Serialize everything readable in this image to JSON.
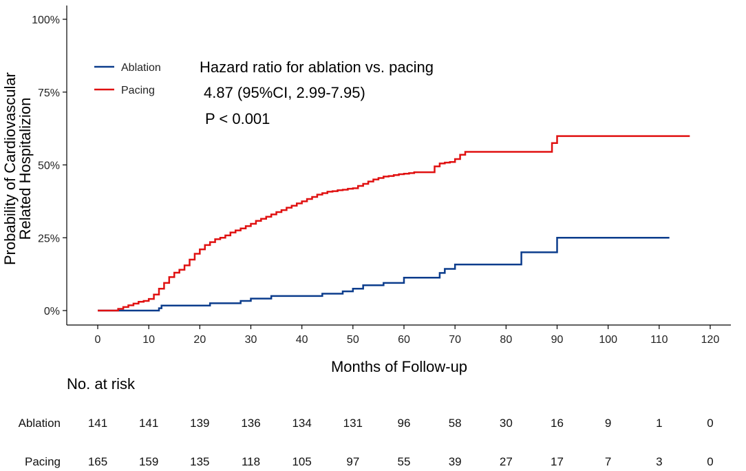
{
  "chart_data": {
    "type": "line",
    "step": true,
    "title": "",
    "xlabel": "Months of Follow-up",
    "ylabel_lines": [
      "Probability of Cardiovascular",
      "Related Hospitalizion"
    ],
    "xlim": [
      0,
      120
    ],
    "ylim": [
      0,
      100
    ],
    "x_ticks": [
      0,
      10,
      20,
      30,
      40,
      50,
      60,
      70,
      80,
      90,
      100,
      110,
      120
    ],
    "y_ticks": [
      0,
      25,
      50,
      75,
      100
    ],
    "y_tick_labels": [
      "0%",
      "25%",
      "50%",
      "75%",
      "100%"
    ],
    "grid": false,
    "legend_position": "top-left",
    "series": [
      {
        "name": "Ablation",
        "color": "#0b3c8c",
        "x": [
          0,
          4,
          10,
          12,
          12.5,
          18,
          22,
          26,
          28,
          30,
          34,
          40,
          44,
          48,
          50,
          52,
          56,
          60,
          66,
          67,
          68,
          70,
          75,
          83,
          89,
          90,
          112
        ],
        "y": [
          0,
          0,
          0,
          0.8,
          1.7,
          1.7,
          2.5,
          2.5,
          3.3,
          4.1,
          5.0,
          5.0,
          5.8,
          6.6,
          7.5,
          8.7,
          9.5,
          11.3,
          11.3,
          12.9,
          14.3,
          15.8,
          15.8,
          20.0,
          20.0,
          25.0,
          25.0
        ]
      },
      {
        "name": "Pacing",
        "color": "#e01010",
        "x": [
          0,
          4,
          5,
          6,
          7,
          8,
          9,
          10,
          11,
          12,
          13,
          14,
          15,
          16,
          17,
          18,
          19,
          20,
          21,
          22,
          23,
          24,
          25,
          26,
          27,
          28,
          29,
          30,
          31,
          32,
          33,
          34,
          35,
          36,
          37,
          38,
          39,
          40,
          41,
          42,
          43,
          44,
          45,
          46,
          47,
          48,
          49,
          50,
          51,
          52,
          53,
          54,
          55,
          56,
          57,
          58,
          59,
          60,
          61,
          62,
          63,
          64,
          65,
          66,
          67,
          68,
          69,
          70,
          71,
          72,
          75,
          80,
          85,
          88,
          89,
          90,
          116
        ],
        "y": [
          0,
          0.6,
          1.2,
          1.8,
          2.4,
          3.0,
          3.3,
          4.0,
          5.5,
          7.5,
          9.5,
          11.5,
          13,
          14,
          15.5,
          17.5,
          19.5,
          21,
          22.5,
          23.5,
          24.5,
          25,
          25.8,
          26.8,
          27.5,
          28.2,
          29,
          29.8,
          30.8,
          31.5,
          32.2,
          33,
          33.8,
          34.5,
          35.3,
          36,
          36.8,
          37.5,
          38.3,
          39,
          39.8,
          40.3,
          40.8,
          41,
          41.3,
          41.5,
          41.8,
          42,
          42.8,
          43.5,
          44.3,
          45,
          45.5,
          46,
          46.2,
          46.5,
          46.8,
          47,
          47.2,
          47.5,
          47.5,
          47.5,
          47.5,
          49.5,
          50.5,
          50.8,
          51,
          52,
          53.5,
          54.5,
          54.5,
          54.5,
          54.5,
          54.5,
          57.5,
          59.9,
          59.9
        ]
      }
    ],
    "annotations": [
      "Hazard ratio for ablation vs. pacing",
      "4.87 (95%CI, 2.99-7.95)",
      "P < 0.001"
    ],
    "risk_table": {
      "title": "No. at risk",
      "times": [
        0,
        10,
        20,
        30,
        40,
        50,
        60,
        70,
        80,
        90,
        100,
        110,
        120
      ],
      "rows": [
        {
          "label": "Ablation",
          "values": [
            "141",
            "141",
            "139",
            "136",
            "134",
            "131",
            "96",
            "58",
            "30",
            "16",
            "9",
            "1",
            "0"
          ]
        },
        {
          "label": "Pacing",
          "values": [
            "165",
            "159",
            "135",
            "118",
            "105",
            "97",
            "55",
            "39",
            "27",
            "17",
            "7",
            "3",
            "0"
          ]
        }
      ]
    }
  }
}
